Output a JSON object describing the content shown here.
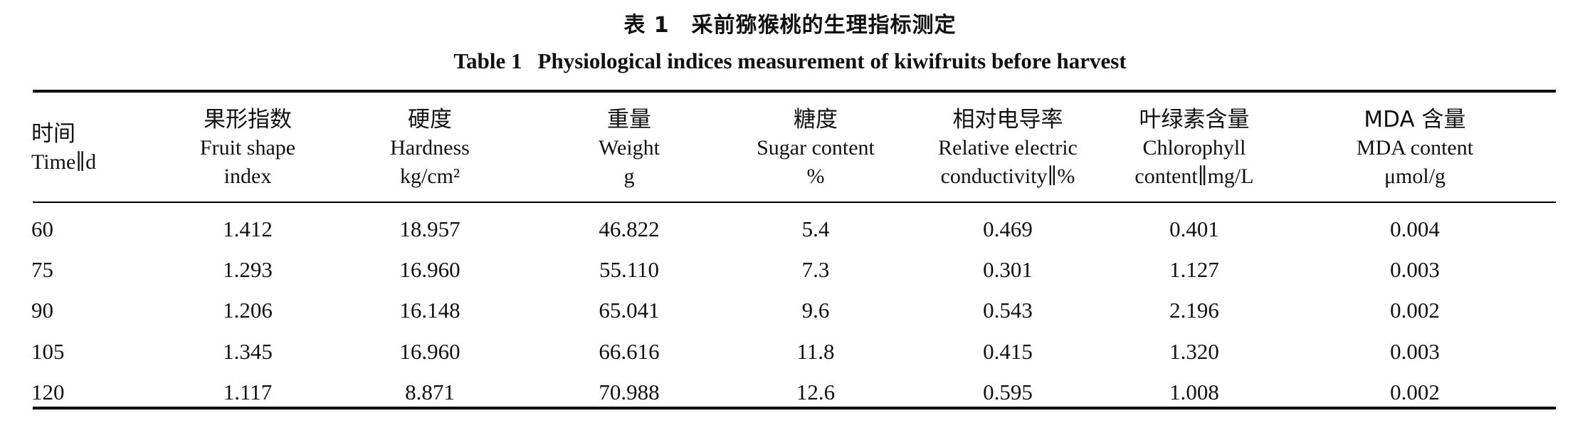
{
  "caption": {
    "cn": "表 1　采前猕猴桃的生理指标测定",
    "en_num": "Table 1",
    "en_title": "Physiological indices measurement of kiwifruits before harvest"
  },
  "columns": [
    {
      "cn": "时间",
      "en": [
        "Time∥d"
      ]
    },
    {
      "cn": "果形指数",
      "en": [
        "Fruit shape",
        "index"
      ]
    },
    {
      "cn": "硬度",
      "en": [
        "Hardness",
        "kg/cm²"
      ]
    },
    {
      "cn": "重量",
      "en": [
        "Weight",
        "g"
      ]
    },
    {
      "cn": "糖度",
      "en": [
        "Sugar content",
        "%"
      ]
    },
    {
      "cn": "相对电导率",
      "en": [
        "Relative electric",
        "conductivity∥%"
      ]
    },
    {
      "cn": "叶绿素含量",
      "en": [
        "Chlorophyll",
        "content∥mg/L"
      ]
    },
    {
      "cn": "MDA 含量",
      "en": [
        "MDA content",
        "μmol/g"
      ]
    }
  ],
  "rows": [
    [
      "60",
      "1.412",
      "18.957",
      "46.822",
      "5.4",
      "0.469",
      "0.401",
      "0.004"
    ],
    [
      "75",
      "1.293",
      "16.960",
      "55.110",
      "7.3",
      "0.301",
      "1.127",
      "0.003"
    ],
    [
      "90",
      "1.206",
      "16.148",
      "65.041",
      "9.6",
      "0.543",
      "2.196",
      "0.002"
    ],
    [
      "105",
      "1.345",
      "16.960",
      "66.616",
      "11.8",
      "0.415",
      "1.320",
      "0.003"
    ],
    [
      "120",
      "1.117",
      "8.871",
      "70.988",
      "12.6",
      "0.595",
      "1.008",
      "0.002"
    ]
  ]
}
